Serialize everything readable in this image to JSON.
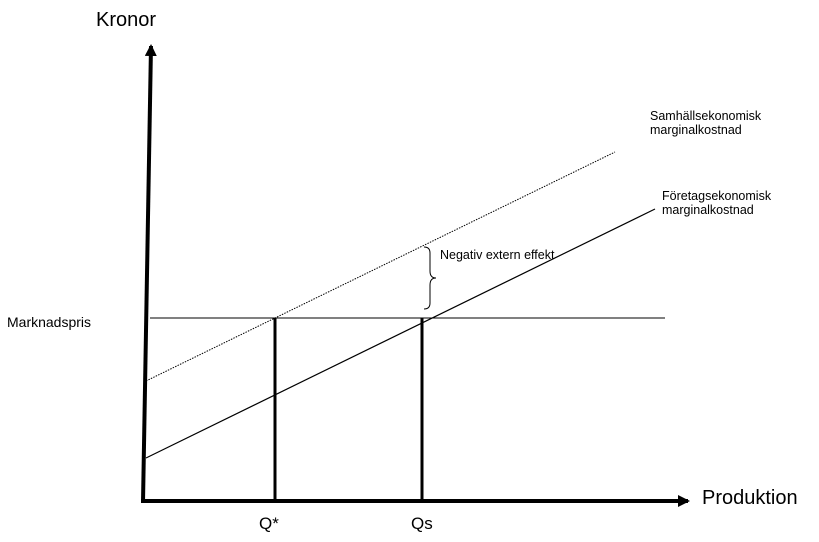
{
  "diagram": {
    "y_axis_label": "Kronor",
    "x_axis_label": "Produktion",
    "market_price_label": "Marknadspris",
    "social_cost_label": [
      "Samhällsekonomisk",
      "marginalkostnad"
    ],
    "private_cost_label": [
      "Företagsekonomisk",
      "marginalkostnad"
    ],
    "externality_label": "Negativ extern effekt",
    "q_star_label": "Q*",
    "qs_label": "Qs"
  }
}
